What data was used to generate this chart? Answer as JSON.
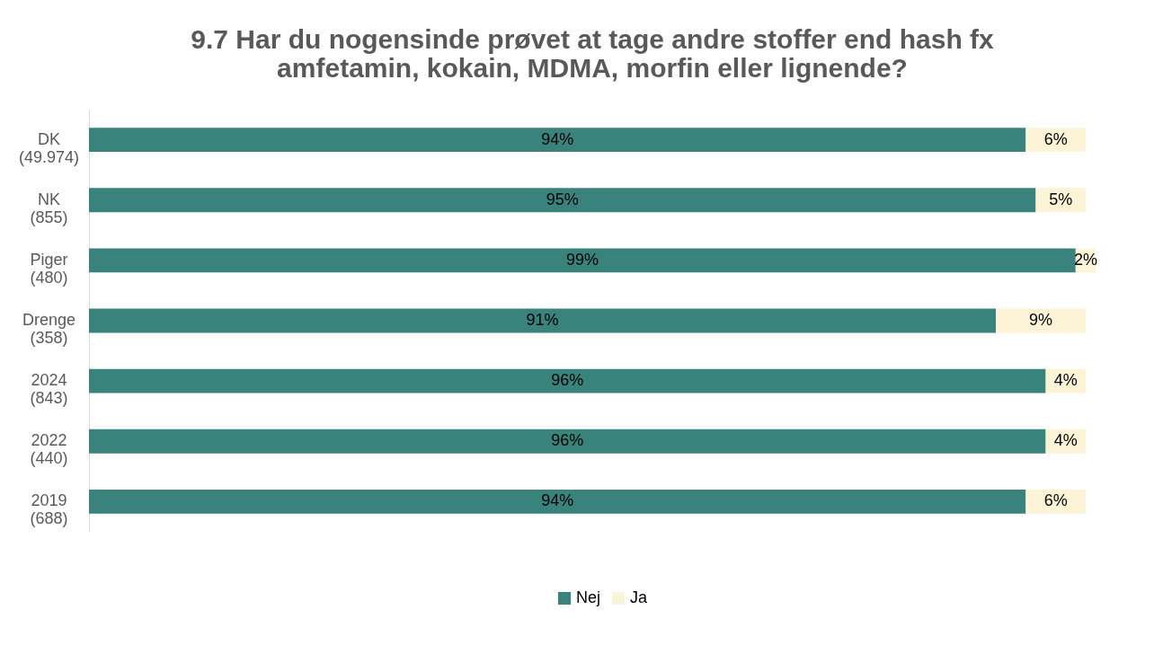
{
  "chart_data": {
    "type": "bar",
    "orientation": "horizontal",
    "stacked": true,
    "legend": "bottom",
    "grid": false,
    "title": "9.7 Har du nogensinde prøvet at tage andre stoffer end hash fx\namfetamin, kokain, MDMA, morfin eller lignende?",
    "categories": [
      "DK\n(49.974)",
      "NK\n(855)",
      "Piger\n(480)",
      "Drenge\n(358)",
      "2024\n(843)",
      "2022\n(440)",
      "2019\n(688)"
    ],
    "series": [
      {
        "name": "Nej",
        "color": "#3a837c",
        "values": [
          94,
          95,
          99,
          91,
          96,
          96,
          94
        ],
        "value_labels": [
          "94%",
          "95%",
          "99%",
          "91%",
          "96%",
          "96%",
          "94%"
        ]
      },
      {
        "name": "Ja",
        "color": "#fdf3d6",
        "values": [
          6,
          5,
          2,
          9,
          4,
          4,
          6
        ],
        "value_labels": [
          "6%",
          "5%",
          "2%",
          "9%",
          "4%",
          "4%",
          "6%"
        ]
      }
    ]
  }
}
